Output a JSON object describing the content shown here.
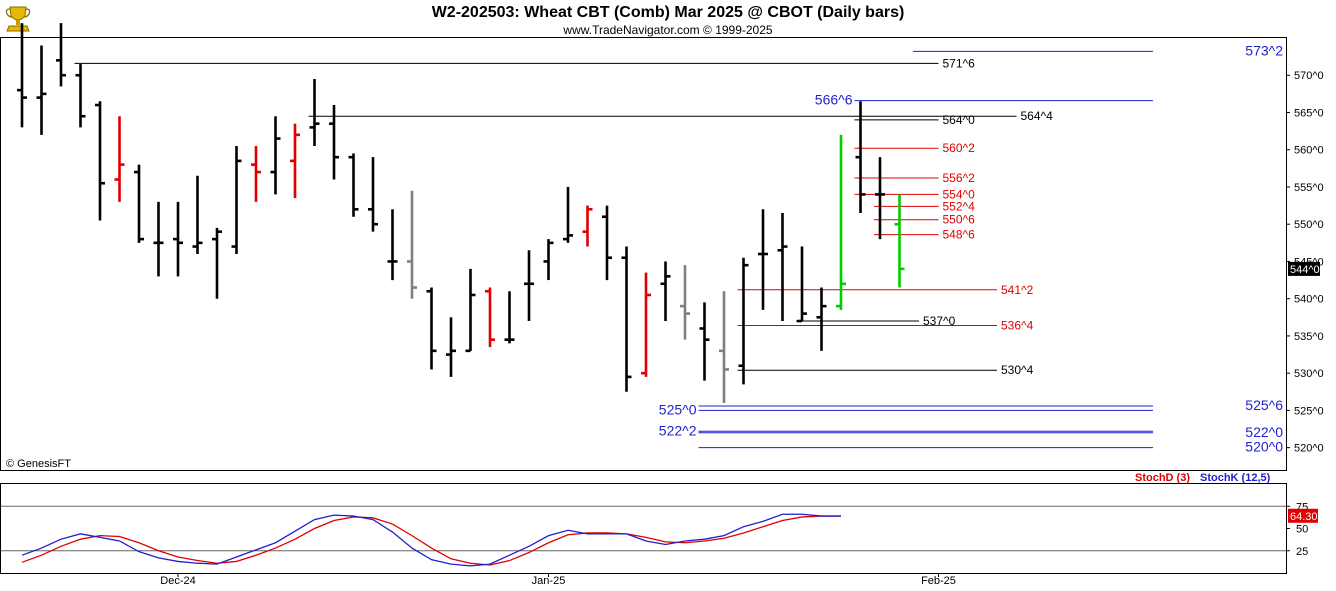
{
  "header": {
    "title": "W2-202503:  Wheat CBT (Comb) Mar 2025 @ CBOT  (Daily bars)",
    "subtitle": "www.TradeNavigator.com © 1999-2025",
    "logo_icon": "trophy-icon",
    "watermark": "© GenesisFT"
  },
  "colors": {
    "up_bar": "#000000",
    "inside_bar": "#808080",
    "red_bar": "#e00000",
    "green_bar": "#00cc00",
    "blue_level": "#1f1fd0",
    "red_level": "#e00000",
    "black_level": "#000000",
    "stoch_d": "#e00000",
    "stoch_k": "#1f1fd0"
  },
  "chart_data": [
    {
      "type": "ohlc",
      "title": "W2-202503:  Wheat CBT (Comb) Mar 2025 @ CBOT  (Daily bars)",
      "ylim": [
        517,
        575
      ],
      "y_ticks": [
        {
          "value": 520,
          "label": "520^0"
        },
        {
          "value": 525,
          "label": "525^0"
        },
        {
          "value": 530,
          "label": "530^0"
        },
        {
          "value": 535,
          "label": "535^0"
        },
        {
          "value": 540,
          "label": "540^0"
        },
        {
          "value": 545,
          "label": "545^0"
        },
        {
          "value": 550,
          "label": "550^0"
        },
        {
          "value": 555,
          "label": "555^0"
        },
        {
          "value": 560,
          "label": "560^0"
        },
        {
          "value": 565,
          "label": "565^0"
        },
        {
          "value": 570,
          "label": "570^0"
        }
      ],
      "x_labels": [
        {
          "index": 8,
          "label": "Dec-24"
        },
        {
          "index": 27,
          "label": "Jan-25"
        },
        {
          "index": 47,
          "label": "Feb-25"
        }
      ],
      "last_price": {
        "value": 544,
        "label": "544^0"
      },
      "bars": [
        {
          "o": 568,
          "h": 577,
          "l": 563,
          "c": 567,
          "color": "black"
        },
        {
          "o": 567,
          "h": 574,
          "l": 562,
          "c": 567.5,
          "color": "black"
        },
        {
          "o": 572,
          "h": 577,
          "l": 568.5,
          "c": 570,
          "color": "black"
        },
        {
          "o": 570,
          "h": 571.5,
          "l": 563,
          "c": 564.5,
          "color": "black"
        },
        {
          "o": 566,
          "h": 566.5,
          "l": 550.5,
          "c": 555.5,
          "color": "black"
        },
        {
          "o": 556,
          "h": 564.5,
          "l": 553,
          "c": 558,
          "color": "red"
        },
        {
          "o": 557,
          "h": 558,
          "l": 547.5,
          "c": 548,
          "color": "black"
        },
        {
          "o": 547.5,
          "h": 553,
          "l": 543,
          "c": 547.5,
          "color": "black"
        },
        {
          "o": 548,
          "h": 553,
          "l": 543,
          "c": 547.5,
          "color": "black"
        },
        {
          "o": 547,
          "h": 556.5,
          "l": 546,
          "c": 547.5,
          "color": "black"
        },
        {
          "o": 548,
          "h": 549.5,
          "l": 540,
          "c": 549,
          "color": "black"
        },
        {
          "o": 547,
          "h": 560.5,
          "l": 546,
          "c": 558.5,
          "color": "black"
        },
        {
          "o": 558,
          "h": 560.5,
          "l": 553,
          "c": 557,
          "color": "red"
        },
        {
          "o": 557,
          "h": 564.5,
          "l": 554,
          "c": 561.5,
          "color": "black"
        },
        {
          "o": 558.5,
          "h": 563.5,
          "l": 553.5,
          "c": 562,
          "color": "red"
        },
        {
          "o": 563,
          "h": 569.5,
          "l": 560.5,
          "c": 563.5,
          "color": "black"
        },
        {
          "o": 563.5,
          "h": 566,
          "l": 556,
          "c": 559,
          "color": "black"
        },
        {
          "o": 559,
          "h": 559.5,
          "l": 551,
          "c": 552,
          "color": "black"
        },
        {
          "o": 552,
          "h": 559,
          "l": 549,
          "c": 550,
          "color": "black"
        },
        {
          "o": 545,
          "h": 552,
          "l": 542.5,
          "c": 545,
          "color": "black"
        },
        {
          "o": 545,
          "h": 554.5,
          "l": 540,
          "c": 541.5,
          "color": "gray"
        },
        {
          "o": 541,
          "h": 541.5,
          "l": 530.5,
          "c": 533,
          "color": "black"
        },
        {
          "o": 532.5,
          "h": 537.5,
          "l": 529.5,
          "c": 533,
          "color": "black"
        },
        {
          "o": 533,
          "h": 544,
          "l": 533,
          "c": 540.5,
          "color": "black"
        },
        {
          "o": 541,
          "h": 541.5,
          "l": 533.5,
          "c": 534.5,
          "color": "red"
        },
        {
          "o": 534.5,
          "h": 541,
          "l": 534,
          "c": 534.5,
          "color": "black"
        },
        {
          "o": 542,
          "h": 546.5,
          "l": 537,
          "c": 542,
          "color": "black"
        },
        {
          "o": 545,
          "h": 548,
          "l": 542.5,
          "c": 547.5,
          "color": "black"
        },
        {
          "o": 548,
          "h": 555,
          "l": 547.5,
          "c": 548.5,
          "color": "black"
        },
        {
          "o": 549,
          "h": 552.5,
          "l": 547,
          "c": 552,
          "color": "red"
        },
        {
          "o": 551,
          "h": 552.5,
          "l": 542.5,
          "c": 545.5,
          "color": "black"
        },
        {
          "o": 545.5,
          "h": 547,
          "l": 527.5,
          "c": 529.5,
          "color": "black"
        },
        {
          "o": 530,
          "h": 543.5,
          "l": 529.5,
          "c": 540.5,
          "color": "red"
        },
        {
          "o": 542,
          "h": 545,
          "l": 537,
          "c": 543,
          "color": "black"
        },
        {
          "o": 539,
          "h": 544.5,
          "l": 534.5,
          "c": 538,
          "color": "gray"
        },
        {
          "o": 536,
          "h": 539.5,
          "l": 529,
          "c": 534.5,
          "color": "black"
        },
        {
          "o": 533,
          "h": 541,
          "l": 526,
          "c": 530.5,
          "color": "gray"
        },
        {
          "o": 531,
          "h": 545.5,
          "l": 528.5,
          "c": 544.5,
          "color": "black"
        },
        {
          "o": 546,
          "h": 552,
          "l": 538.5,
          "c": 546,
          "color": "black"
        },
        {
          "o": 546.5,
          "h": 551.5,
          "l": 537,
          "c": 547,
          "color": "black"
        },
        {
          "o": 537,
          "h": 547,
          "l": 537,
          "c": 538,
          "color": "black"
        },
        {
          "o": 537.5,
          "h": 541.5,
          "l": 533,
          "c": 539,
          "color": "black"
        },
        {
          "o": 539,
          "h": 562,
          "l": 538.5,
          "c": 542,
          "color": "green"
        },
        {
          "o": 559,
          "h": 566.5,
          "l": 551.5,
          "c": 554,
          "color": "black"
        },
        {
          "o": 554,
          "h": 559,
          "l": 548,
          "c": 554,
          "color": "black"
        },
        {
          "o": 550,
          "h": 554,
          "l": 541.5,
          "c": 544,
          "color": "green"
        }
      ],
      "levels": [
        {
          "value": 573.2,
          "label": "573^2",
          "color": "blue",
          "size": "big",
          "start": 46,
          "end": 58
        },
        {
          "value": 571.6,
          "label": "571^6",
          "color": "black",
          "size": "normal",
          "start": 3,
          "end": 47
        },
        {
          "value": 566.6,
          "label": "566^6",
          "color": "blue",
          "size": "big",
          "start": 43,
          "end": 58,
          "label_side": "left"
        },
        {
          "value": 564.5,
          "label": "564^4",
          "color": "black",
          "size": "normal",
          "start": 15,
          "end": 51
        },
        {
          "value": 564.0,
          "label": "564^0",
          "color": "black",
          "size": "normal",
          "start": 43,
          "end": 47
        },
        {
          "value": 560.2,
          "label": "560^2",
          "color": "red",
          "size": "normal",
          "start": 43,
          "end": 47
        },
        {
          "value": 556.2,
          "label": "556^2",
          "color": "red",
          "size": "normal",
          "start": 43,
          "end": 47
        },
        {
          "value": 554.0,
          "label": "554^0",
          "color": "red",
          "size": "normal",
          "start": 43,
          "end": 47
        },
        {
          "value": 552.4,
          "label": "552^4",
          "color": "red",
          "size": "normal",
          "start": 44,
          "end": 47
        },
        {
          "value": 550.6,
          "label": "550^6",
          "color": "red",
          "size": "normal",
          "start": 44,
          "end": 47
        },
        {
          "value": 548.6,
          "label": "548^6",
          "color": "red",
          "size": "normal",
          "start": 44,
          "end": 47
        },
        {
          "value": 541.2,
          "label": "541^2",
          "color": "red",
          "size": "normal",
          "start": 37,
          "end": 50
        },
        {
          "value": 537.0,
          "label": "537^0",
          "color": "black",
          "size": "normal",
          "start": 40,
          "end": 46
        },
        {
          "value": 536.4,
          "label": "536^4",
          "color": "red",
          "size": "normal",
          "start": 37,
          "end": 50
        },
        {
          "value": 530.4,
          "label": "530^4",
          "color": "black",
          "size": "normal",
          "start": 37,
          "end": 50
        },
        {
          "value": 525.6,
          "label": "525^6",
          "color": "blue",
          "size": "big",
          "start": 35,
          "end": 58
        },
        {
          "value": 525.0,
          "label": "525^0",
          "color": "blue",
          "size": "big",
          "start": 35,
          "end": 58,
          "label_side": "left"
        },
        {
          "value": 522.2,
          "label": "522^2",
          "color": "blue",
          "size": "big",
          "start": 35,
          "end": 58,
          "label_side": "left"
        },
        {
          "value": 522.0,
          "label": "522^0",
          "color": "blue",
          "size": "big",
          "start": 35,
          "end": 58
        },
        {
          "value": 520.0,
          "label": "520^0",
          "color": "blue",
          "size": "big",
          "start": 35,
          "end": 58
        }
      ]
    },
    {
      "type": "line",
      "title": "",
      "legend": [
        {
          "name": "StochD (3)",
          "color": "red"
        },
        {
          "name": "StochK (12,5)",
          "color": "blue"
        }
      ],
      "ylim": [
        0,
        100
      ],
      "y_ticks": [
        25,
        50,
        75
      ],
      "reference_lines": [
        25,
        75
      ],
      "last_value": {
        "value": 64.3,
        "label": "64.30"
      },
      "series": [
        {
          "name": "StochK (12,5)",
          "values": [
            20,
            28,
            38,
            44,
            40,
            36,
            24,
            17,
            13,
            11,
            10,
            18,
            26,
            34,
            47,
            60,
            65,
            64,
            60,
            46,
            28,
            15,
            10,
            8,
            10,
            20,
            30,
            42,
            48,
            44,
            44,
            44,
            36,
            32,
            36,
            38,
            42,
            52,
            58,
            66,
            66,
            64,
            64
          ]
        },
        {
          "name": "StochD (3)",
          "values": [
            12,
            20,
            30,
            38,
            42,
            41,
            34,
            25,
            18,
            14,
            11,
            13,
            20,
            28,
            38,
            50,
            59,
            63,
            62,
            55,
            42,
            28,
            16,
            11,
            9,
            14,
            23,
            34,
            43,
            45,
            45,
            44,
            40,
            35,
            34,
            36,
            39,
            45,
            52,
            59,
            63,
            64,
            64
          ]
        }
      ]
    }
  ]
}
